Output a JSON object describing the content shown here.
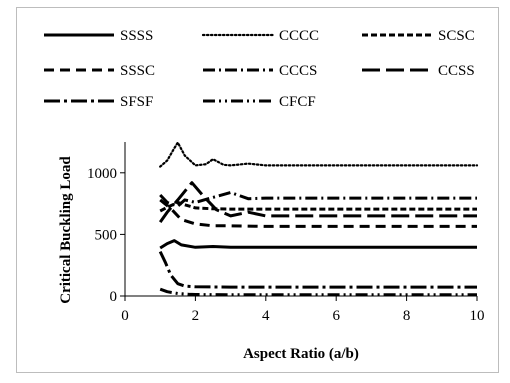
{
  "chart_data": {
    "type": "line",
    "title": "",
    "xlabel": "Aspect Ratio (a/b)",
    "ylabel": "Critical Buckling Load",
    "xlim": [
      0,
      10
    ],
    "ylim": [
      0,
      1250
    ],
    "xticks": [
      0,
      2,
      4,
      6,
      8,
      10
    ],
    "yticks": [
      0,
      500,
      1000
    ],
    "grid": false,
    "legend_position": "top",
    "series": [
      {
        "name": "SSSS",
        "dash": "solid",
        "x": [
          1.0,
          1.2,
          1.4,
          1.6,
          2.0,
          2.5,
          3.0,
          4.0,
          5.0,
          6.0,
          7.0,
          8.0,
          9.0,
          10.0
        ],
        "y": [
          390,
          425,
          450,
          415,
          395,
          402,
          395,
          395,
          395,
          395,
          395,
          395,
          395,
          395
        ]
      },
      {
        "name": "CCCC",
        "dash": "dotted",
        "x": [
          1.0,
          1.2,
          1.4,
          1.5,
          1.7,
          2.0,
          2.3,
          2.5,
          2.8,
          3.0,
          3.5,
          4.0,
          5.0,
          6.0,
          7.0,
          8.0,
          9.0,
          10.0
        ],
        "y": [
          1050,
          1100,
          1200,
          1245,
          1140,
          1060,
          1070,
          1110,
          1065,
          1060,
          1075,
          1060,
          1060,
          1060,
          1060,
          1060,
          1060,
          1060
        ]
      },
      {
        "name": "SCSC",
        "dash": "short-dash",
        "x": [
          1.0,
          1.2,
          1.5,
          1.7,
          2.0,
          2.5,
          3.0,
          3.5,
          4.0,
          5.0,
          6.0,
          7.0,
          8.0,
          9.0,
          10.0
        ],
        "y": [
          690,
          720,
          760,
          740,
          715,
          708,
          705,
          705,
          705,
          705,
          705,
          705,
          705,
          705,
          705
        ]
      },
      {
        "name": "SSSC",
        "dash": "dash",
        "x": [
          1.0,
          1.3,
          1.6,
          2.0,
          2.5,
          3.0,
          4.0,
          5.0,
          6.0,
          7.0,
          8.0,
          9.0,
          10.0
        ],
        "y": [
          780,
          710,
          620,
          585,
          570,
          570,
          565,
          565,
          565,
          565,
          565,
          565,
          565
        ]
      },
      {
        "name": "CCCS",
        "dash": "dash-dot",
        "x": [
          1.0,
          1.2,
          1.5,
          1.7,
          2.0,
          2.5,
          3.0,
          3.5,
          4.0,
          5.0,
          6.0,
          7.0,
          8.0,
          9.0,
          10.0
        ],
        "y": [
          820,
          760,
          730,
          780,
          760,
          800,
          840,
          790,
          795,
          795,
          795,
          795,
          795,
          795,
          795
        ]
      },
      {
        "name": "CCSS",
        "dash": "long-dash",
        "x": [
          1.0,
          1.2,
          1.5,
          1.7,
          1.9,
          2.2,
          2.6,
          3.0,
          3.5,
          4.0,
          5.0,
          6.0,
          7.0,
          8.0,
          9.0,
          10.0
        ],
        "y": [
          600,
          680,
          780,
          850,
          920,
          820,
          700,
          650,
          680,
          650,
          650,
          650,
          650,
          650,
          650,
          650
        ]
      },
      {
        "name": "SFSF",
        "dash": "long-dash-dot",
        "x": [
          1.0,
          1.15,
          1.3,
          1.5,
          1.7,
          2.0,
          3.0,
          4.0,
          5.0,
          6.0,
          7.0,
          8.0,
          9.0,
          10.0
        ],
        "y": [
          360,
          270,
          170,
          100,
          80,
          75,
          72,
          72,
          72,
          72,
          72,
          72,
          72,
          72
        ]
      },
      {
        "name": "CFCF",
        "dash": "dash-dot-dot",
        "x": [
          1.0,
          1.2,
          1.5,
          1.8,
          2.0,
          3.0,
          4.0,
          5.0,
          6.0,
          7.0,
          8.0,
          9.0,
          10.0
        ],
        "y": [
          55,
          35,
          20,
          15,
          12,
          10,
          10,
          10,
          10,
          10,
          10,
          10,
          10
        ]
      }
    ]
  }
}
